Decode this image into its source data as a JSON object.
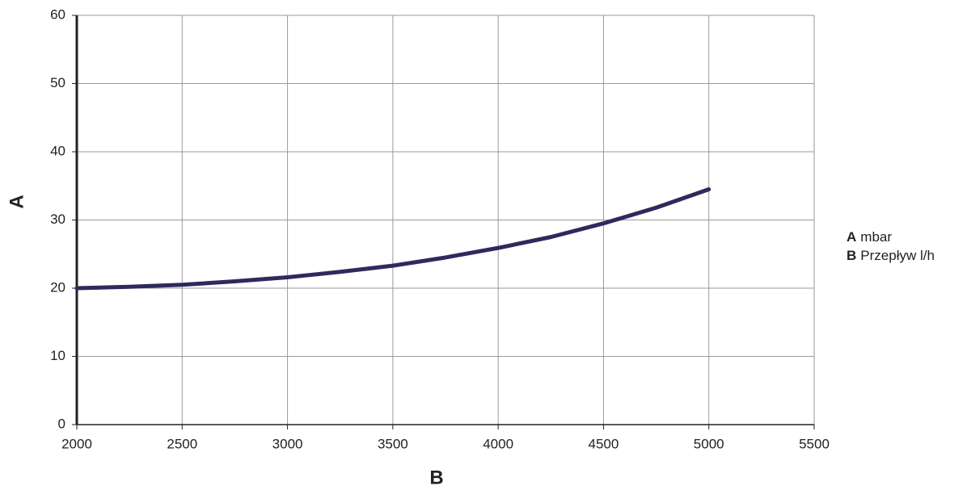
{
  "chart_data": {
    "type": "line",
    "x_label": "B",
    "y_label": "A",
    "x": [
      2000,
      2250,
      2500,
      2750,
      3000,
      3250,
      3500,
      3750,
      4000,
      4250,
      4500,
      4750,
      5000
    ],
    "series": [
      {
        "color": "#2d2b5c",
        "values": [
          20,
          20.2,
          20.5,
          21,
          21.6,
          22.4,
          23.3,
          24.5,
          25.9,
          27.5,
          29.5,
          31.8,
          34.5
        ]
      }
    ],
    "xlim": [
      2000,
      5500
    ],
    "xticks": [
      2000,
      2500,
      3000,
      3500,
      4000,
      4500,
      5000,
      5500
    ],
    "ylim": [
      0,
      60
    ],
    "yticks": [
      0,
      10,
      20,
      30,
      40,
      50,
      60
    ],
    "grid": true,
    "legend": [
      {
        "key": "A",
        "text": "mbar"
      },
      {
        "key": "B",
        "text": "Przepływ l/h"
      }
    ]
  }
}
